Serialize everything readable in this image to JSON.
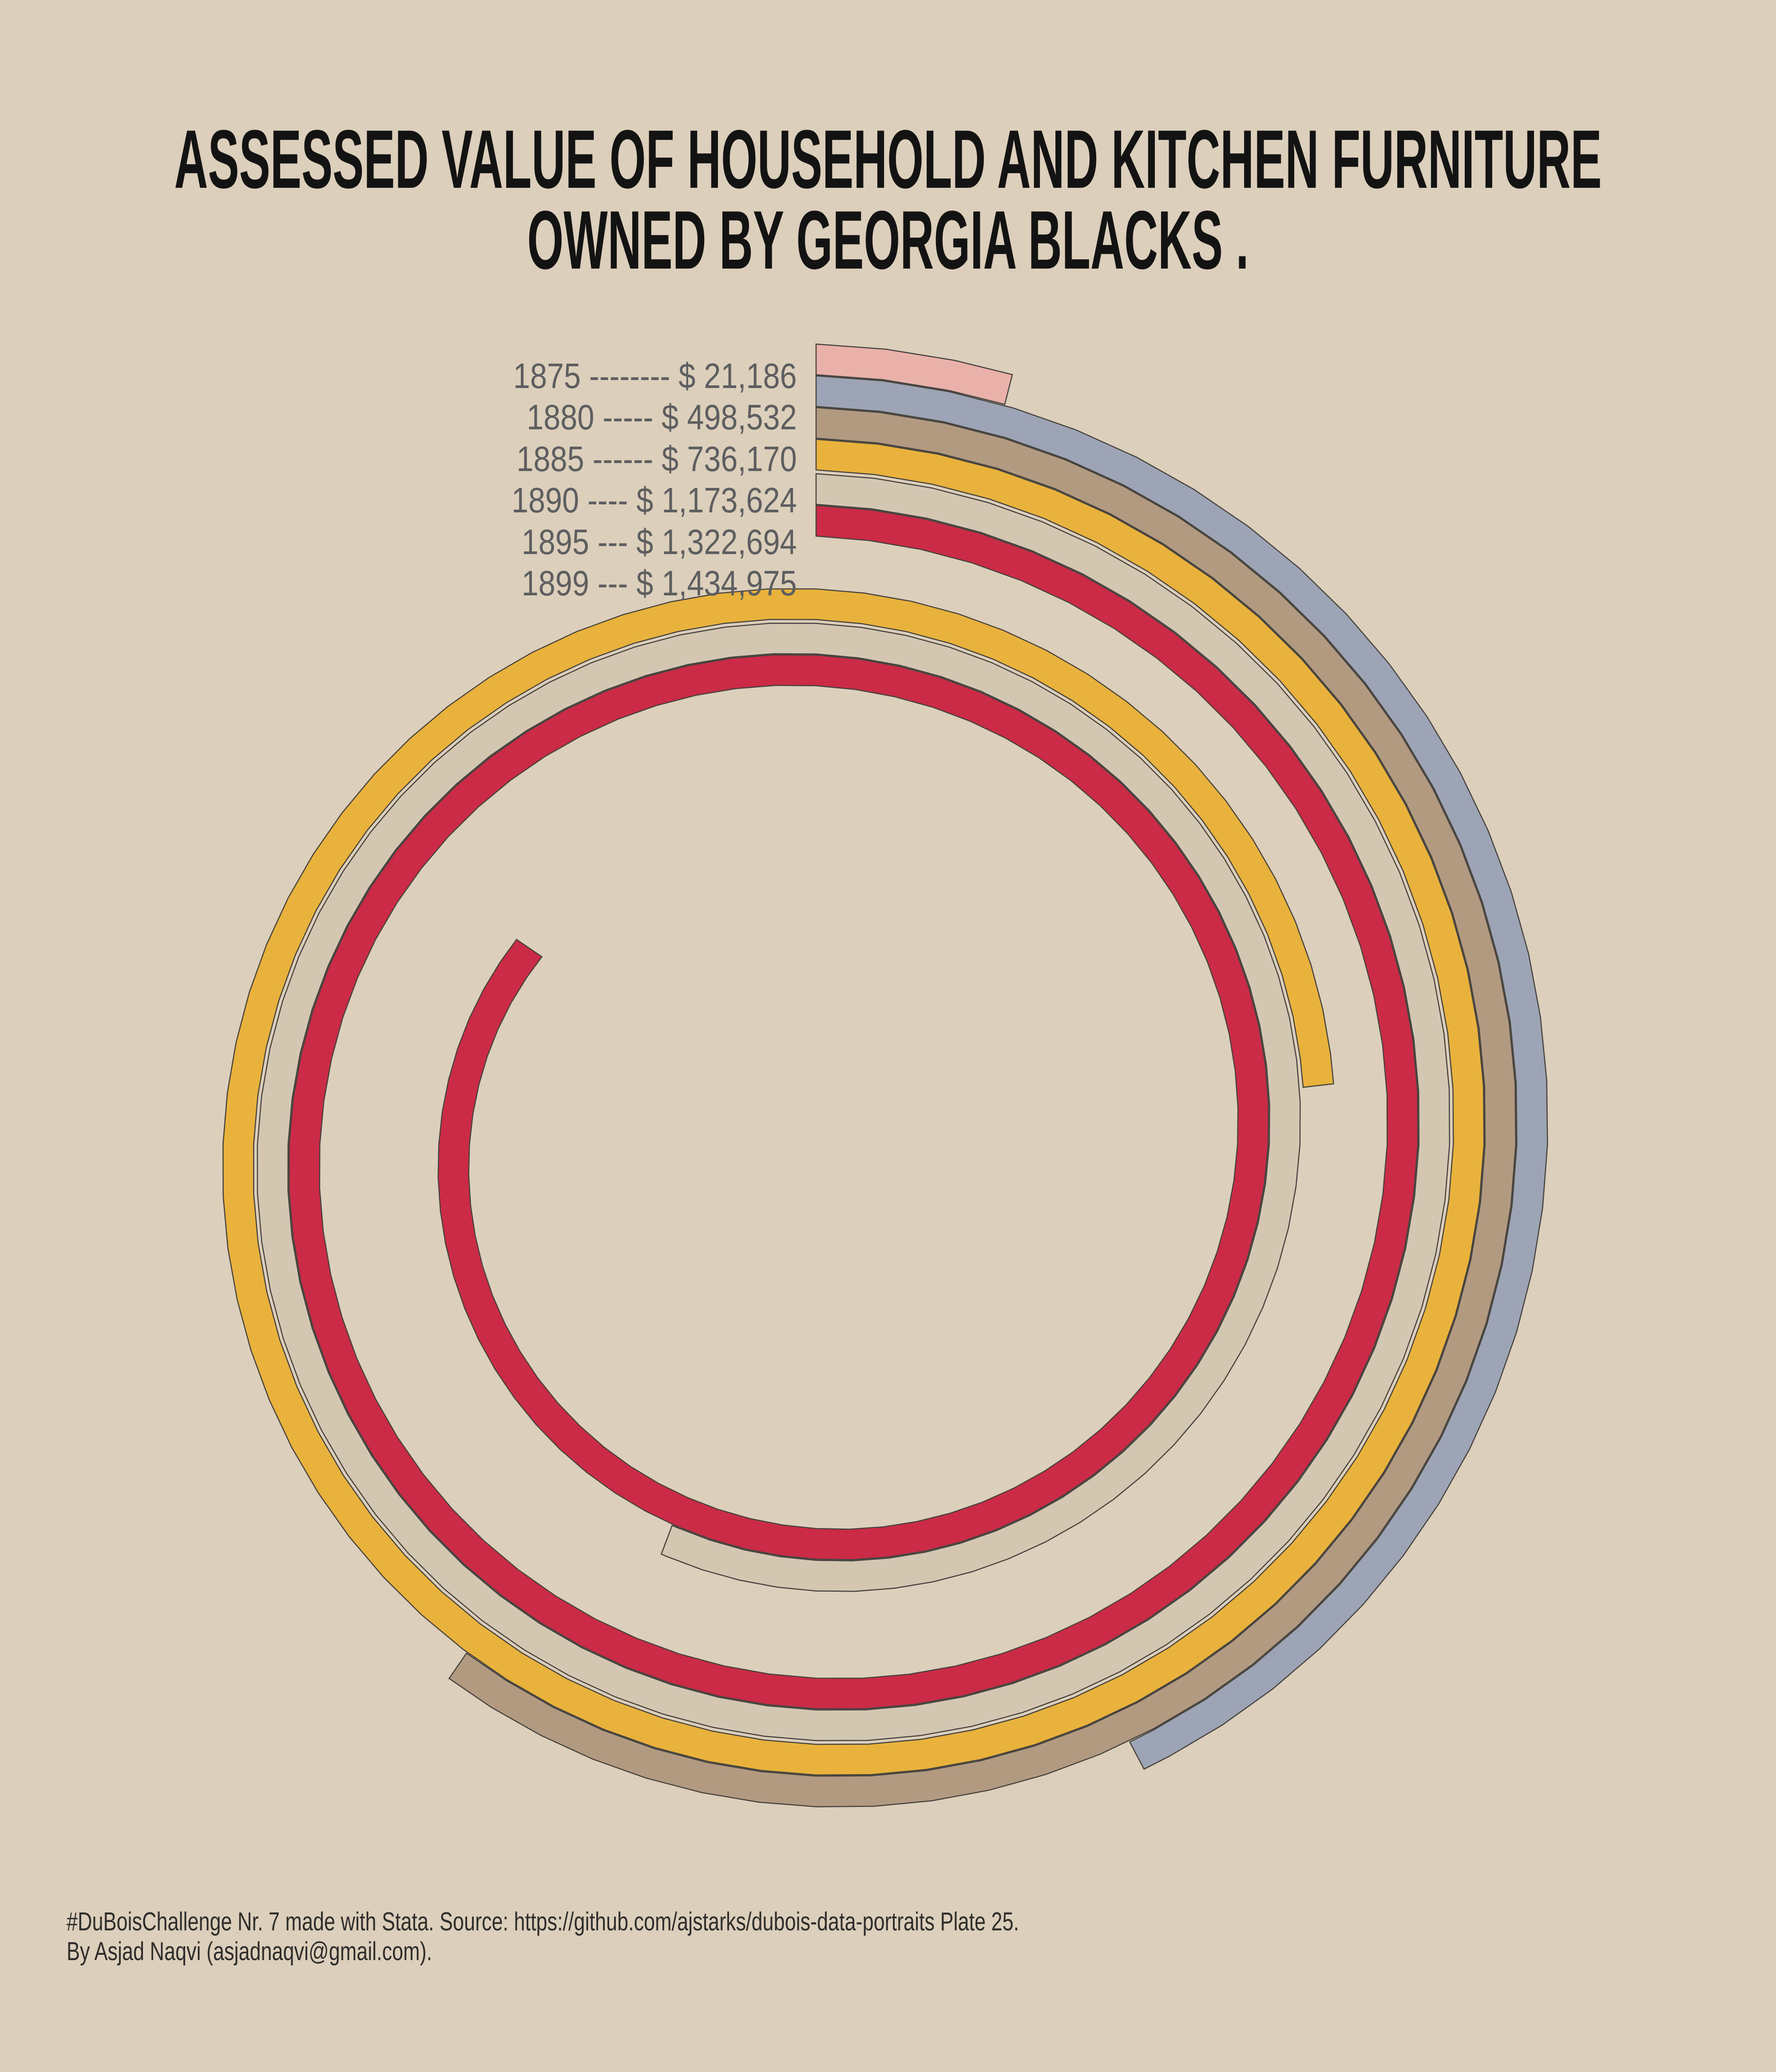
{
  "title": {
    "line1": "ASSESSED VALUE OF HOUSEHOLD AND KITCHEN FURNITURE",
    "line2": "OWNED BY GEORGIA BLACKS ."
  },
  "legend": {
    "rows": [
      {
        "year": "1875",
        "dashes": "--------",
        "value": "$ 21,186"
      },
      {
        "year": "1880",
        "dashes": "-----",
        "value": "$ 498,532"
      },
      {
        "year": "1885",
        "dashes": "------",
        "value": "$ 736,170"
      },
      {
        "year": "1890",
        "dashes": "----",
        "value": "$ 1,173,624"
      },
      {
        "year": "1895",
        "dashes": "---",
        "value": "$ 1,322,694"
      },
      {
        "year": "1899",
        "dashes": "---",
        "value": "$ 1,434,975"
      }
    ]
  },
  "footer": {
    "line1": "#DuBoisChallenge Nr. 7 made with Stata. Source: https://github.com/ajstarks/dubois-data-portraits Plate 25.",
    "line2": "By Asjad Naqvi (asjadnaqvi@gmail.com)."
  },
  "colors": {
    "background": "#dccfbb",
    "outline": "#45423d",
    "title_text": "#131313",
    "legend_text": "#5d5e60",
    "footer_text": "#2e2d2b"
  },
  "chart_data": {
    "type": "bar",
    "variant": "spiral",
    "title": "Assessed value of household and kitchen furniture owned by Georgia Blacks",
    "categories": [
      "1875",
      "1880",
      "1885",
      "1890",
      "1895",
      "1899"
    ],
    "values": [
      21186,
      498532,
      736170,
      1173624,
      1322694,
      1434975
    ],
    "series": [
      {
        "name": "1875",
        "value": 21186,
        "color": "#e9b1aa"
      },
      {
        "name": "1880",
        "value": 498532,
        "color": "#9da4b5"
      },
      {
        "name": "1885",
        "value": 736170,
        "color": "#b29a81"
      },
      {
        "name": "1890",
        "value": 1173624,
        "color": "#e9b23c"
      },
      {
        "name": "1895",
        "value": 1322694,
        "color": "#d4c7b2"
      },
      {
        "name": "1899",
        "value": 1434975,
        "color": "#cb2b46"
      }
    ],
    "geometry": {
      "cx": 1838,
      "cy": 2578,
      "outer_radii": [
        1803,
        1731.5,
        1660,
        1588.5,
        1511,
        1439.5
      ],
      "thickness": 69,
      "pitch_per_turn": 337,
      "sweep_deg": [
        14.3,
        152.3,
        214.5,
        443.3,
        560.7,
        664.4
      ],
      "step_deg": 5
    }
  }
}
